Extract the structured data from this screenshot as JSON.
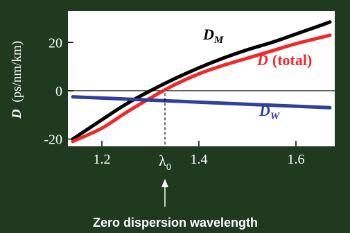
{
  "chart_data": {
    "type": "line",
    "ylabel": "D",
    "ylabel_units": "(ps/nm/km)",
    "xlim": [
      1.13,
      1.68
    ],
    "ylim": [
      -23,
      33
    ],
    "y_ticks": [
      {
        "value": 20,
        "label": "20"
      },
      {
        "value": 0,
        "label": "0"
      },
      {
        "value": -20,
        "label": "-20"
      }
    ],
    "x_ticks": [
      {
        "value": 1.2,
        "label": "1.2"
      },
      {
        "value": 1.4,
        "label": "1.4"
      },
      {
        "value": 1.6,
        "label": "1.6"
      }
    ],
    "zero_line": true,
    "series": [
      {
        "key": "DM",
        "label_main": "D",
        "label_sub": "M",
        "color": "#000000",
        "x": [
          1.14,
          1.2,
          1.25,
          1.3,
          1.35,
          1.4,
          1.45,
          1.5,
          1.55,
          1.6,
          1.65,
          1.67
        ],
        "y": [
          -20.0,
          -12.0,
          -5.5,
          0.0,
          5.0,
          9.5,
          13.5,
          17.0,
          20.0,
          23.5,
          27.0,
          28.5
        ]
      },
      {
        "key": "D",
        "label_main": "D",
        "label_suffix": "(total)",
        "color": "#ee2a2a",
        "x": [
          1.14,
          1.2,
          1.25,
          1.3,
          1.35,
          1.4,
          1.45,
          1.5,
          1.55,
          1.6,
          1.65,
          1.67
        ],
        "y": [
          -21.0,
          -15.5,
          -9.0,
          -3.0,
          2.5,
          7.0,
          10.5,
          13.5,
          16.5,
          19.5,
          22.0,
          23.0
        ]
      },
      {
        "key": "DW",
        "label_main": "D",
        "label_sub": "W",
        "color": "#2f3f9c",
        "x": [
          1.14,
          1.67
        ],
        "y": [
          -2.5,
          -7.0
        ]
      }
    ],
    "marker": {
      "x": 1.33,
      "label_main": "λ",
      "label_sub": "0"
    },
    "caption": "Zero dispersion wavelength"
  }
}
